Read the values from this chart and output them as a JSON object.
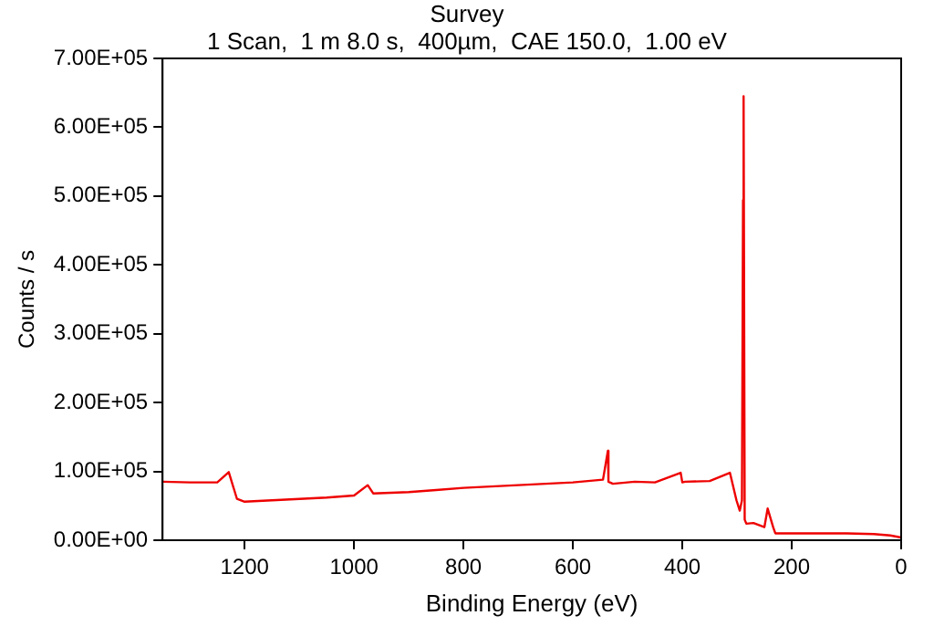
{
  "chart_data": {
    "type": "line",
    "title": "Survey",
    "subtitle": "1 Scan,  1 m 8.0 s,  400µm,  CAE 150.0,  1.00 eV",
    "xlabel": "Binding Energy (eV)",
    "ylabel": "Counts / s",
    "x": [
      1350,
      1300,
      1250,
      1229,
      1214,
      1200,
      1150,
      1100,
      1050,
      1000,
      975,
      965,
      900,
      850,
      800,
      700,
      600,
      545,
      536,
      535,
      527,
      487,
      450,
      403,
      400,
      395,
      350,
      313,
      301,
      295,
      291,
      289,
      288,
      286,
      283,
      270,
      250,
      244,
      234,
      230,
      200,
      150,
      100,
      50,
      20,
      0
    ],
    "series": [
      {
        "color": "#ee0000",
        "values": [
          85000,
          84000,
          84000,
          99000,
          60000,
          56000,
          58000,
          60000,
          62000,
          65000,
          80000,
          68000,
          70000,
          73000,
          76000,
          80000,
          84000,
          88000,
          130000,
          85000,
          82000,
          85000,
          84000,
          98000,
          84000,
          85000,
          86000,
          98000,
          58000,
          43000,
          58000,
          494000,
          645000,
          30000,
          24000,
          25000,
          19000,
          46000,
          19000,
          10000,
          10000,
          10000,
          10000,
          9000,
          7000,
          4000
        ]
      }
    ],
    "xlim": [
      1350,
      0
    ],
    "xticks": [
      0,
      200,
      400,
      600,
      800,
      1000,
      1200
    ],
    "ylim": [
      0,
      700000
    ],
    "yticks": [
      {
        "value": 0,
        "label": "0.00E+00"
      },
      {
        "value": 100000,
        "label": "1.00E+05"
      },
      {
        "value": 200000,
        "label": "2.00E+05"
      },
      {
        "value": 300000,
        "label": "3.00E+05"
      },
      {
        "value": 400000,
        "label": "4.00E+05"
      },
      {
        "value": 500000,
        "label": "5.00E+05"
      },
      {
        "value": 600000,
        "label": "6.00E+05"
      },
      {
        "value": 700000,
        "label": "7.00E+05"
      }
    ],
    "marker": "none",
    "line_style": "solid"
  }
}
